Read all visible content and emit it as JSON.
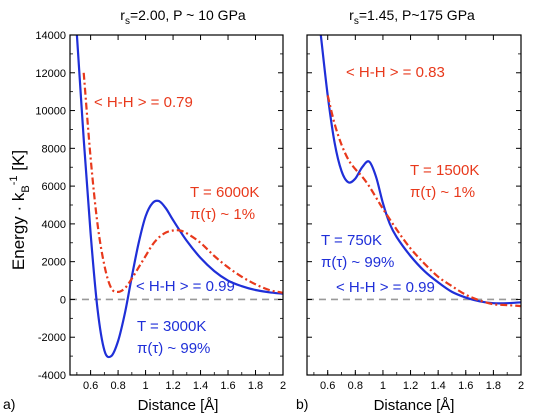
{
  "figure": {
    "ylabel_main": "Energy · k",
    "ylabel_sub": "B",
    "ylabel_sup": "-1",
    "ylabel_unit": " [K]",
    "colors": {
      "blue": "#1f2fd8",
      "red": "#e8391c",
      "zero_line": "#999999"
    }
  },
  "chart_data": [
    {
      "type": "line",
      "panel_label": "a)",
      "title_pre": "r",
      "title_sub": "s",
      "title_post": "=2.00, P ~ 10 GPa",
      "xlabel": "Distance [Å]",
      "xlim": [
        0.45,
        2.0
      ],
      "ylim": [
        -4000,
        14000
      ],
      "xticks": [
        "0.6",
        "0.8",
        "1",
        "1.2",
        "1.4",
        "1.6",
        "1.8",
        "2"
      ],
      "yticks": [
        "-4000",
        "-2000",
        "0",
        "2000",
        "4000",
        "6000",
        "8000",
        "10000",
        "12000",
        "14000"
      ],
      "series": [
        {
          "color": "blue",
          "style": "solid",
          "x": [
            0.5,
            0.55,
            0.6,
            0.65,
            0.7,
            0.75,
            0.8,
            0.85,
            0.9,
            0.95,
            1.0,
            1.05,
            1.1,
            1.15,
            1.2,
            1.3,
            1.4,
            1.5,
            1.6,
            1.7,
            1.8,
            1.9,
            2.0
          ],
          "y": [
            14000,
            8500,
            3500,
            -500,
            -2700,
            -3000,
            -2200,
            -700,
            1200,
            3000,
            4400,
            5100,
            5200,
            4800,
            4200,
            3100,
            2200,
            1500,
            1000,
            700,
            500,
            380,
            300
          ]
        },
        {
          "color": "red",
          "style": "dashdot",
          "x": [
            0.55,
            0.6,
            0.65,
            0.7,
            0.75,
            0.8,
            0.85,
            0.9,
            0.95,
            1.0,
            1.05,
            1.1,
            1.15,
            1.2,
            1.25,
            1.3,
            1.4,
            1.5,
            1.6,
            1.7,
            1.8,
            1.9,
            2.0
          ],
          "y": [
            12000,
            7500,
            4000,
            1800,
            600,
            400,
            600,
            1100,
            1700,
            2300,
            2900,
            3300,
            3550,
            3650,
            3650,
            3500,
            3000,
            2300,
            1700,
            1200,
            800,
            500,
            350
          ]
        },
        {
          "color": "zero_line",
          "style": "dashed",
          "x": [
            0.45,
            2.0
          ],
          "y": [
            0,
            0
          ]
        }
      ],
      "annotations": [
        {
          "text": "< H-H > = 0.79",
          "color": "red"
        },
        {
          "text": "T = 6000K",
          "color": "red"
        },
        {
          "text": "π(τ) ~ 1%",
          "color": "red"
        },
        {
          "text": "< H-H > = 0.99",
          "color": "blue"
        },
        {
          "text": "T = 3000K",
          "color": "blue"
        },
        {
          "text": "π(τ) ~ 99%",
          "color": "blue"
        }
      ]
    },
    {
      "type": "line",
      "panel_label": "b)",
      "title_pre": "r",
      "title_sub": "s",
      "title_post": "=1.45, P~175 GPa",
      "xlabel": "Distance [Å]",
      "xlim": [
        0.45,
        2.0
      ],
      "ylim": [
        -4000,
        14000
      ],
      "xticks": [
        "0.6",
        "0.8",
        "1",
        "1.2",
        "1.4",
        "1.6",
        "1.8",
        "2"
      ],
      "yticks": [],
      "series": [
        {
          "color": "blue",
          "style": "solid",
          "x": [
            0.55,
            0.6,
            0.65,
            0.7,
            0.75,
            0.8,
            0.85,
            0.9,
            0.95,
            1.0,
            1.05,
            1.1,
            1.2,
            1.3,
            1.4,
            1.5,
            1.6,
            1.7,
            1.8,
            1.9,
            2.0
          ],
          "y": [
            14000,
            10800,
            8300,
            6800,
            6200,
            6400,
            7000,
            7300,
            6500,
            5100,
            4000,
            3300,
            2300,
            1500,
            900,
            400,
            100,
            -100,
            -200,
            -200,
            -150
          ]
        },
        {
          "color": "red",
          "style": "dashdot",
          "x": [
            0.6,
            0.65,
            0.7,
            0.75,
            0.8,
            0.85,
            0.9,
            0.95,
            1.0,
            1.1,
            1.2,
            1.3,
            1.4,
            1.5,
            1.6,
            1.7,
            1.8,
            1.9,
            2.0
          ],
          "y": [
            10800,
            9300,
            8200,
            7400,
            6900,
            6500,
            6000,
            5400,
            4800,
            3700,
            2700,
            1900,
            1200,
            700,
            250,
            -50,
            -250,
            -300,
            -350
          ]
        },
        {
          "color": "zero_line",
          "style": "dashed",
          "x": [
            0.45,
            2.0
          ],
          "y": [
            0,
            0
          ]
        }
      ],
      "annotations": [
        {
          "text": "< H-H > = 0.83",
          "color": "red"
        },
        {
          "text": "T = 1500K",
          "color": "red"
        },
        {
          "text": "π(τ) ~ 1%",
          "color": "red"
        },
        {
          "text": "T = 750K",
          "color": "blue"
        },
        {
          "text": "π(τ) ~ 99%",
          "color": "blue"
        },
        {
          "text": "< H-H > = 0.99",
          "color": "blue"
        }
      ]
    }
  ]
}
